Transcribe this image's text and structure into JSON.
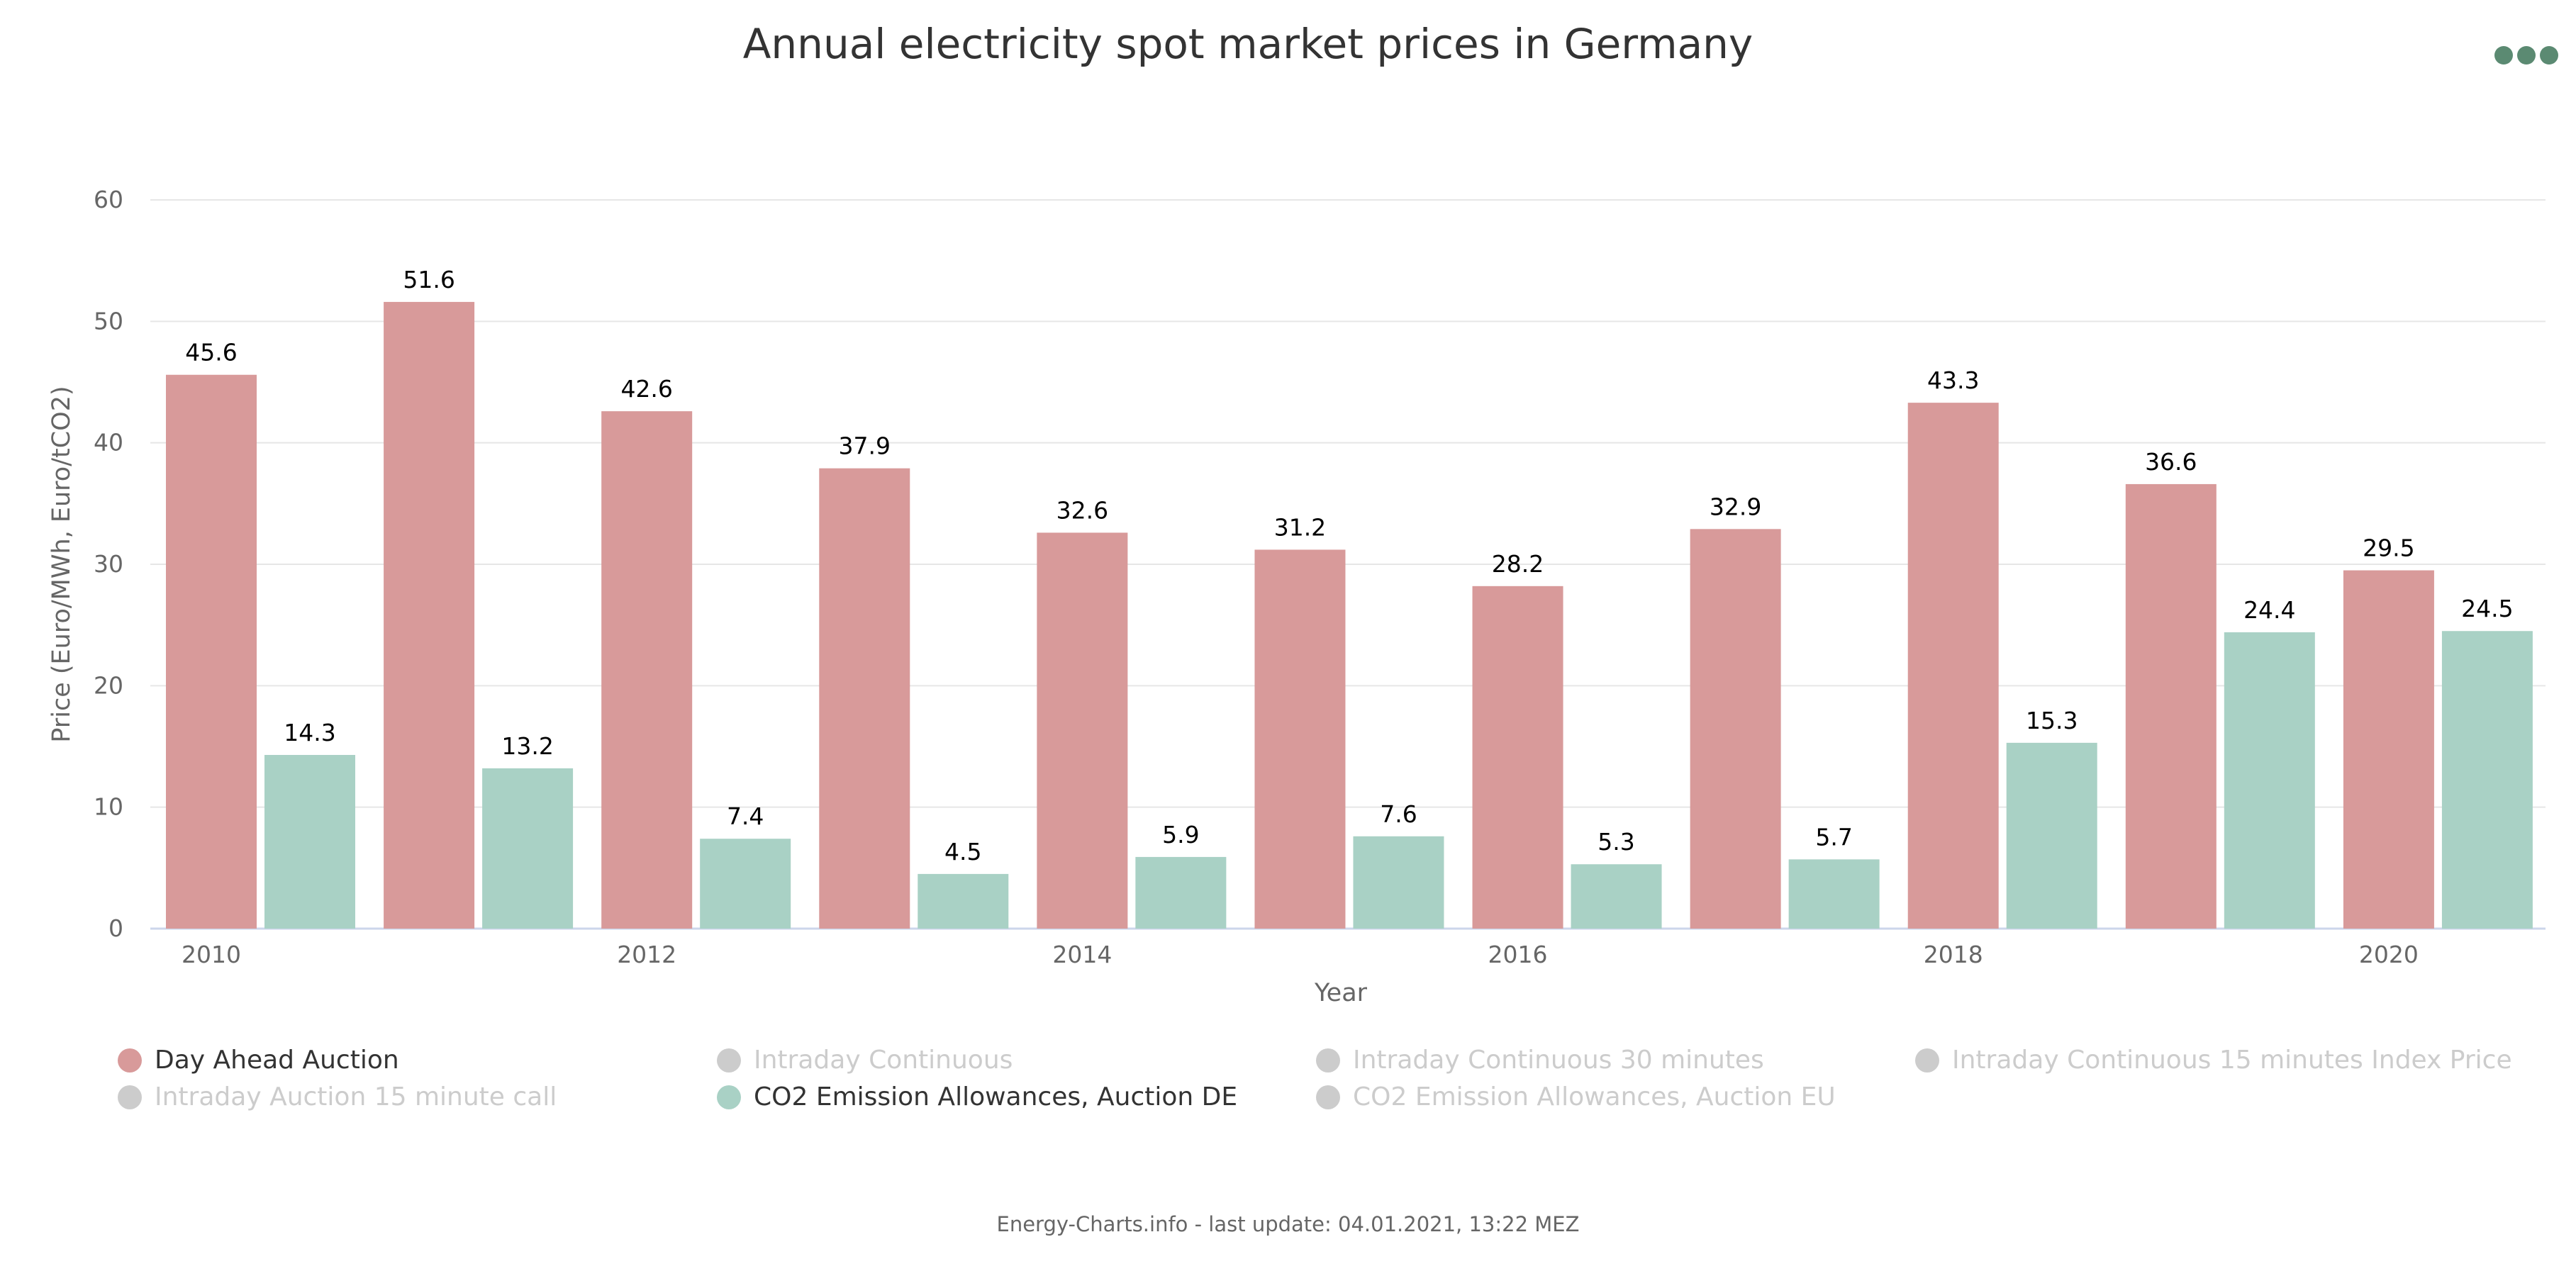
{
  "chart": {
    "title": "Annual electricity spot market prices in Germany",
    "credits": "Energy-Charts.info - last update: 04.01.2021, 13:22 MEZ",
    "menu_icon": "ellipsis-icon",
    "menu_color": "#5b8a72"
  },
  "chart_data": {
    "type": "bar",
    "title": "Annual electricity spot market prices in Germany",
    "xlabel": "Year",
    "ylabel": "Price (Euro/MWh, Euro/tCO2)",
    "ylim": [
      0,
      60
    ],
    "yticks": [
      0,
      10,
      20,
      30,
      40,
      50,
      60
    ],
    "categories": [
      "2010",
      "2011",
      "2012",
      "2013",
      "2014",
      "2015",
      "2016",
      "2017",
      "2018",
      "2019",
      "2020"
    ],
    "xtick_labels": [
      "2010",
      "",
      "2012",
      "",
      "2014",
      "",
      "2016",
      "",
      "2018",
      "",
      "2020"
    ],
    "grid": true,
    "legend_position": "bottom",
    "series": [
      {
        "name": "Day Ahead Auction",
        "color": "#d89a9a",
        "values": [
          45.6,
          51.6,
          42.6,
          37.9,
          32.6,
          31.2,
          28.2,
          32.9,
          43.3,
          36.6,
          29.5
        ]
      },
      {
        "name": "CO2 Emission Allowances, Auction DE",
        "color": "#a9d1c5",
        "values": [
          14.3,
          13.2,
          7.4,
          4.5,
          5.9,
          7.6,
          5.3,
          5.7,
          15.3,
          24.4,
          24.5
        ]
      }
    ],
    "legend": [
      {
        "name": "Day Ahead Auction",
        "color": "#d89a9a",
        "visible": true
      },
      {
        "name": "Intraday Continuous",
        "color": "#cccccc",
        "visible": false
      },
      {
        "name": "Intraday Continuous 30 minutes",
        "color": "#cccccc",
        "visible": false
      },
      {
        "name": "Intraday Continuous 15 minutes Index Price",
        "color": "#cccccc",
        "visible": false
      },
      {
        "name": "Intraday Auction 15 minute call",
        "color": "#cccccc",
        "visible": false
      },
      {
        "name": "CO2 Emission Allowances, Auction DE",
        "color": "#a9d1c5",
        "visible": true
      },
      {
        "name": "CO2 Emission Allowances, Auction EU",
        "color": "#cccccc",
        "visible": false
      }
    ],
    "legend_text_active": "#333333",
    "legend_text_inactive": "#cccccc",
    "grid_color": "#e6e6e6",
    "axis_color": "#ccd6eb"
  }
}
